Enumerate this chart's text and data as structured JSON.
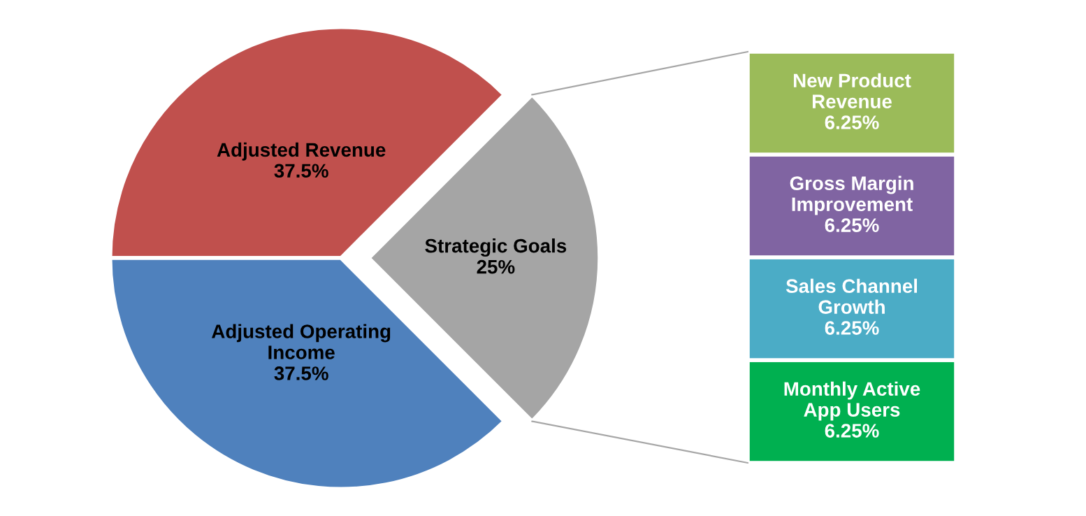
{
  "chart_data": [
    {
      "type": "pie",
      "categories": [
        "Adjusted Revenue",
        "Strategic Goals",
        "Adjusted Operating\nIncome"
      ],
      "values": [
        37.5,
        25,
        37.5
      ],
      "value_labels": [
        "37.5%",
        "25%",
        "37.5%"
      ],
      "colors": [
        "#c0504d",
        "#a5a5a5",
        "#4f81bd"
      ]
    },
    {
      "type": "bar",
      "stacked": true,
      "categories": [
        null
      ],
      "series": [
        {
          "name": "Monthly Active\nApp Users",
          "color": "#00b050",
          "values": [
            6.25
          ],
          "value_labels": [
            "6.25%"
          ]
        },
        {
          "name": "Sales Channel\nGrowth",
          "color": "#4bacc6",
          "values": [
            6.25
          ],
          "value_labels": [
            "6.25%"
          ]
        },
        {
          "name": "Gross Margin\nImprovement",
          "color": "#8064a2",
          "values": [
            6.25
          ],
          "value_labels": [
            "6.25%"
          ]
        },
        {
          "name": "New Product\nRevenue",
          "color": "#9bbb59",
          "values": [
            6.25
          ],
          "value_labels": [
            "6.25%"
          ]
        }
      ]
    }
  ]
}
